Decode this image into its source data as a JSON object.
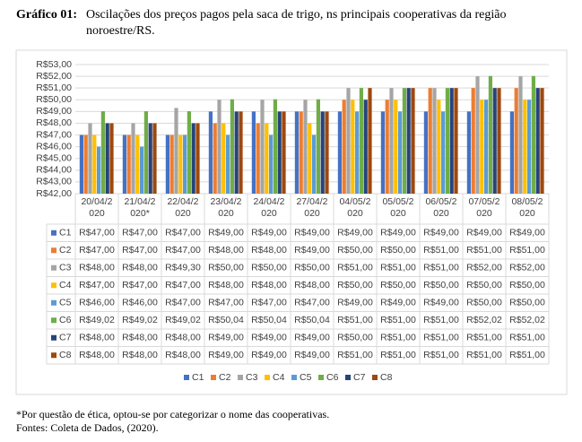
{
  "title": "Gráfico 01:",
  "subtitle": "Oscilações dos preços pagos pela saca de trigo, ns principais cooperativas da região noroestre/RS.",
  "notes": [
    "*Por questão de ética, optou-se por categorizar o nome das cooperativas.",
    "Fontes: Coleta de Dados, (2020)."
  ],
  "chart_data": {
    "type": "bar",
    "categories": [
      "20/04/2020",
      "21/04/2020*",
      "22/04/2020",
      "23/04/2020",
      "24/04/2020",
      "27/04/2020",
      "04/05/2020",
      "05/05/2020",
      "06/05/2020",
      "07/05/2020",
      "08/05/2020"
    ],
    "ylim": [
      42,
      53
    ],
    "yticks": [
      {
        "value": 42,
        "label": "R$42,00"
      },
      {
        "value": 43,
        "label": "R$43,00"
      },
      {
        "value": 44,
        "label": "R$44,00"
      },
      {
        "value": 45,
        "label": "R$45,00"
      },
      {
        "value": 46,
        "label": "R$46,00"
      },
      {
        "value": 47,
        "label": "R$47,00"
      },
      {
        "value": 48,
        "label": "R$48,00"
      },
      {
        "value": 49,
        "label": "R$49,00"
      },
      {
        "value": 50,
        "label": "R$50,00"
      },
      {
        "value": 51,
        "label": "R$51,00"
      },
      {
        "value": 52,
        "label": "R$52,00"
      },
      {
        "value": 53,
        "label": "R$53,00"
      }
    ],
    "grid": true,
    "legend": "bottom",
    "series": [
      {
        "name": "C1",
        "color": "#4472c4",
        "values": [
          47,
          47,
          47,
          49,
          49,
          49,
          49,
          49,
          49,
          49,
          49
        ],
        "value_labels": [
          "R$47,00",
          "R$47,00",
          "R$47,00",
          "R$49,00",
          "R$49,00",
          "R$49,00",
          "R$49,00",
          "R$49,00",
          "R$49,00",
          "R$49,00",
          "R$49,00"
        ]
      },
      {
        "name": "C2",
        "color": "#ed7d31",
        "values": [
          47,
          47,
          47,
          48,
          48,
          49,
          50,
          50,
          51,
          51,
          51
        ],
        "value_labels": [
          "R$47,00",
          "R$47,00",
          "R$47,00",
          "R$48,00",
          "R$48,00",
          "R$49,00",
          "R$50,00",
          "R$50,00",
          "R$51,00",
          "R$51,00",
          "R$51,00"
        ]
      },
      {
        "name": "C3",
        "color": "#a5a5a5",
        "values": [
          48,
          48,
          49.3,
          50,
          50,
          50,
          51,
          51,
          51,
          52,
          52
        ],
        "value_labels": [
          "R$48,00",
          "R$48,00",
          "R$49,30",
          "R$50,00",
          "R$50,00",
          "R$50,00",
          "R$51,00",
          "R$51,00",
          "R$51,00",
          "R$52,00",
          "R$52,00"
        ]
      },
      {
        "name": "C4",
        "color": "#ffc000",
        "values": [
          47,
          47,
          47,
          48,
          48,
          48,
          50,
          50,
          50,
          50,
          50
        ],
        "value_labels": [
          "R$47,00",
          "R$47,00",
          "R$47,00",
          "R$48,00",
          "R$48,00",
          "R$48,00",
          "R$50,00",
          "R$50,00",
          "R$50,00",
          "R$50,00",
          "R$50,00"
        ]
      },
      {
        "name": "C5",
        "color": "#5b9bd5",
        "values": [
          46,
          46,
          47,
          47,
          47,
          47,
          49,
          49,
          49,
          50,
          50
        ],
        "value_labels": [
          "R$46,00",
          "R$46,00",
          "R$47,00",
          "R$47,00",
          "R$47,00",
          "R$47,00",
          "R$49,00",
          "R$49,00",
          "R$49,00",
          "R$50,00",
          "R$50,00"
        ]
      },
      {
        "name": "C6",
        "color": "#70ad47",
        "values": [
          49.02,
          49.02,
          49.02,
          50.04,
          50.04,
          50.04,
          51,
          51,
          51,
          52.02,
          52.02
        ],
        "value_labels": [
          "R$49,02",
          "R$49,02",
          "R$49,02",
          "R$50,04",
          "R$50,04",
          "R$50,04",
          "R$51,00",
          "R$51,00",
          "R$51,00",
          "R$52,02",
          "R$52,02"
        ]
      },
      {
        "name": "C7",
        "color": "#264478",
        "values": [
          48,
          48,
          48,
          49,
          49,
          49,
          50,
          51,
          51,
          51,
          51
        ],
        "value_labels": [
          "R$48,00",
          "R$48,00",
          "R$48,00",
          "R$49,00",
          "R$49,00",
          "R$49,00",
          "R$50,00",
          "R$51,00",
          "R$51,00",
          "R$51,00",
          "R$51,00"
        ]
      },
      {
        "name": "C8",
        "color": "#9e480e",
        "values": [
          48,
          48,
          48,
          49,
          49,
          49,
          51,
          51,
          51,
          51,
          51
        ],
        "value_labels": [
          "R$48,00",
          "R$48,00",
          "R$48,00",
          "R$49,00",
          "R$49,00",
          "R$49,00",
          "R$51,00",
          "R$51,00",
          "R$51,00",
          "R$51,00",
          "R$51,00"
        ]
      }
    ]
  }
}
